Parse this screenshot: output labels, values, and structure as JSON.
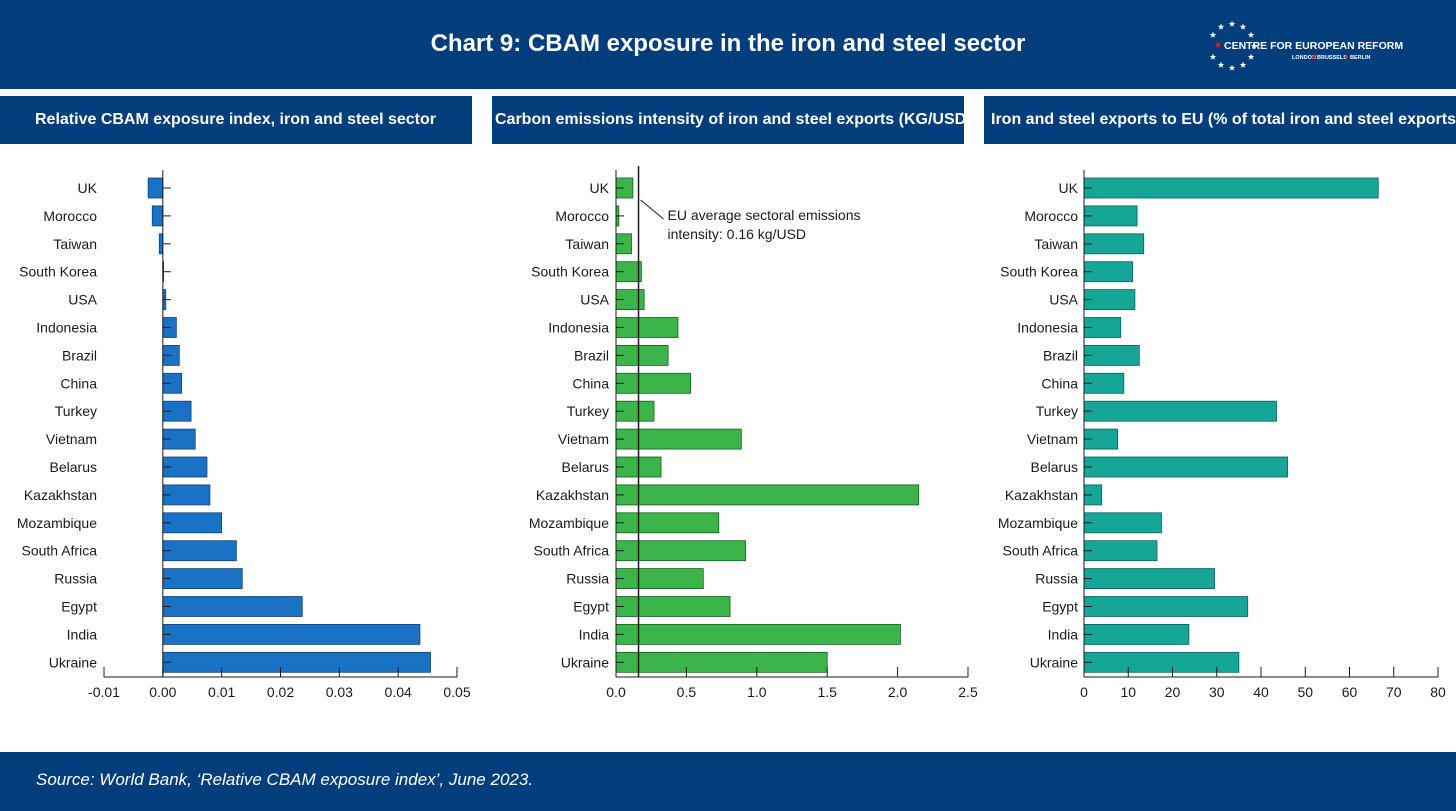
{
  "header": {
    "title": "Chart 9: CBAM exposure in the iron and steel sector",
    "logo": {
      "name": "CENTRE FOR EUROPEAN REFORM",
      "cities": [
        "LONDON",
        "BRUSSELS",
        "BERLIN"
      ]
    }
  },
  "footer": {
    "source": "Source: World Bank, ‘Relative CBAM exposure index’, June 2023."
  },
  "colors": {
    "band": "#033e7c",
    "blue_bar": "#1a72c4",
    "green_bar": "#3bb54a",
    "teal_bar": "#16a698",
    "star_accent": "#e2242b"
  },
  "chart_data": [
    {
      "type": "bar",
      "orientation": "horizontal",
      "title": "Relative CBAM exposure index, iron and steel sector",
      "categories": [
        "UK",
        "Morocco",
        "Taiwan",
        "South Korea",
        "USA",
        "Indonesia",
        "Brazil",
        "China",
        "Turkey",
        "Vietnam",
        "Belarus",
        "Kazakhstan",
        "Mozambique",
        "South Africa",
        "Russia",
        "Egypt",
        "India",
        "Ukraine"
      ],
      "values": [
        -0.0025,
        -0.0018,
        -0.0006,
        0.0001,
        0.0005,
        0.0023,
        0.0028,
        0.0032,
        0.0048,
        0.0055,
        0.0075,
        0.008,
        0.01,
        0.0125,
        0.0135,
        0.0237,
        0.0437,
        0.0455
      ],
      "xlim": [
        -0.01,
        0.05
      ],
      "xticks": [
        "-0.01",
        "0.00",
        "0.01",
        "0.02",
        "0.03",
        "0.04",
        "0.05"
      ],
      "grid": false,
      "color": "#1a72c4"
    },
    {
      "type": "bar",
      "orientation": "horizontal",
      "title": "Carbon emissions intensity of iron and steel exports (KG/USD)",
      "categories": [
        "UK",
        "Morocco",
        "Taiwan",
        "South Korea",
        "USA",
        "Indonesia",
        "Brazil",
        "China",
        "Turkey",
        "Vietnam",
        "Belarus",
        "Kazakhstan",
        "Mozambique",
        "South Africa",
        "Russia",
        "Egypt",
        "India",
        "Ukraine"
      ],
      "values": [
        0.12,
        0.02,
        0.11,
        0.18,
        0.2,
        0.44,
        0.37,
        0.53,
        0.27,
        0.89,
        0.32,
        2.15,
        0.73,
        0.92,
        0.62,
        0.81,
        2.02,
        1.5
      ],
      "xlim": [
        0,
        2.5
      ],
      "xticks": [
        "0.0",
        "0.5",
        "1.0",
        "1.5",
        "2.0",
        "2.5"
      ],
      "reference_line": {
        "value": 0.16,
        "label_lines": [
          "EU average sectoral emissions",
          "intensity: 0.16 kg/USD"
        ]
      },
      "grid": false,
      "color": "#3bb54a"
    },
    {
      "type": "bar",
      "orientation": "horizontal",
      "title": "Iron and steel exports to EU (% of total iron and steel exports",
      "categories": [
        "UK",
        "Morocco",
        "Taiwan",
        "South Korea",
        "USA",
        "Indonesia",
        "Brazil",
        "China",
        "Turkey",
        "Vietnam",
        "Belarus",
        "Kazakhstan",
        "Mozambique",
        "South Africa",
        "Russia",
        "Egypt",
        "India",
        "Ukraine"
      ],
      "values": [
        66.5,
        12,
        13.5,
        11,
        11.5,
        8.3,
        12.5,
        9,
        43.5,
        7.6,
        46,
        4,
        17.5,
        16.5,
        29.5,
        37,
        23.7,
        35
      ],
      "xlim": [
        0,
        80
      ],
      "xticks": [
        "0",
        "10",
        "20",
        "30",
        "40",
        "50",
        "60",
        "70",
        "80"
      ],
      "grid": false,
      "color": "#16a698"
    }
  ]
}
